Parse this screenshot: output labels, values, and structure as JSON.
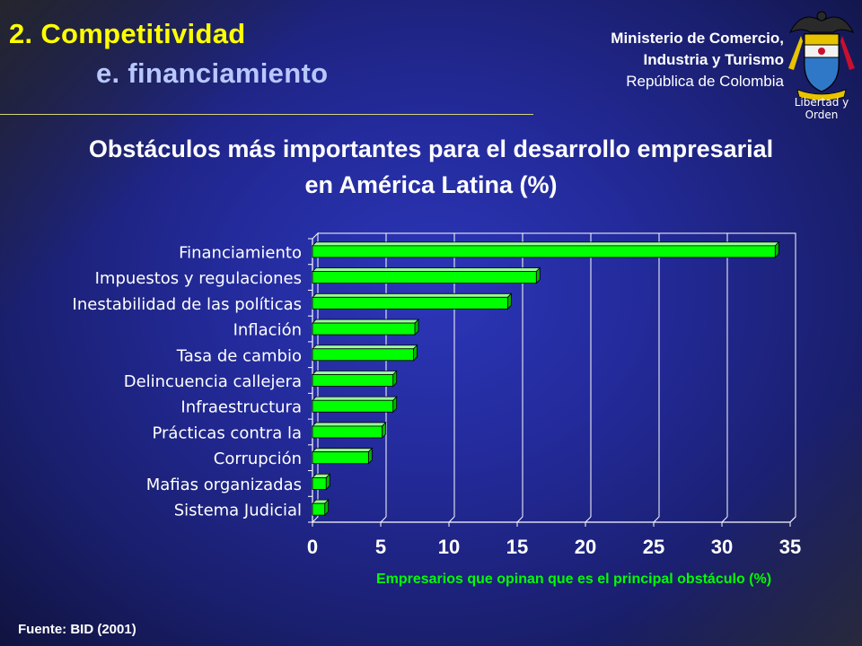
{
  "header": {
    "section_title": "2. Competitividad",
    "section_subtitle": "e. financiamiento",
    "ministry_line1": "Ministerio de Comercio,",
    "ministry_line2": "Industria y Turismo",
    "ministry_line3": "República de Colombia",
    "crest_motto": "Libertad y Orden"
  },
  "chart_data": {
    "type": "bar",
    "orientation": "horizontal",
    "title_line1": "Obstáculos más importantes para el desarrollo empresarial",
    "title_line2": "en América Latina (%)",
    "categories": [
      "Financiamiento",
      "Impuestos y regulaciones",
      "Inestabilidad de las políticas",
      "Inflación",
      "Tasa de cambio",
      "Delincuencia callejera",
      "Infraestructura",
      "Prácticas contra la",
      "Corrupción",
      "Mafias organizadas",
      "Sistema Judicial"
    ],
    "values": [
      33.9,
      16.4,
      14.3,
      7.5,
      7.4,
      5.9,
      5.9,
      5.1,
      4.1,
      1.0,
      0.9
    ],
    "xlabel": "Empresarios que opinan que es el principal obstáculo (%)",
    "xlim": [
      0,
      35
    ],
    "xticks": [
      "0",
      "5",
      "10",
      "15",
      "20",
      "25",
      "30",
      "35"
    ],
    "grid": true,
    "bar_color": "#00ff00",
    "text_color": "#ffffff",
    "xlabel_color": "#00ff00"
  },
  "footer": {
    "source": "Fuente: BID (2001)"
  }
}
